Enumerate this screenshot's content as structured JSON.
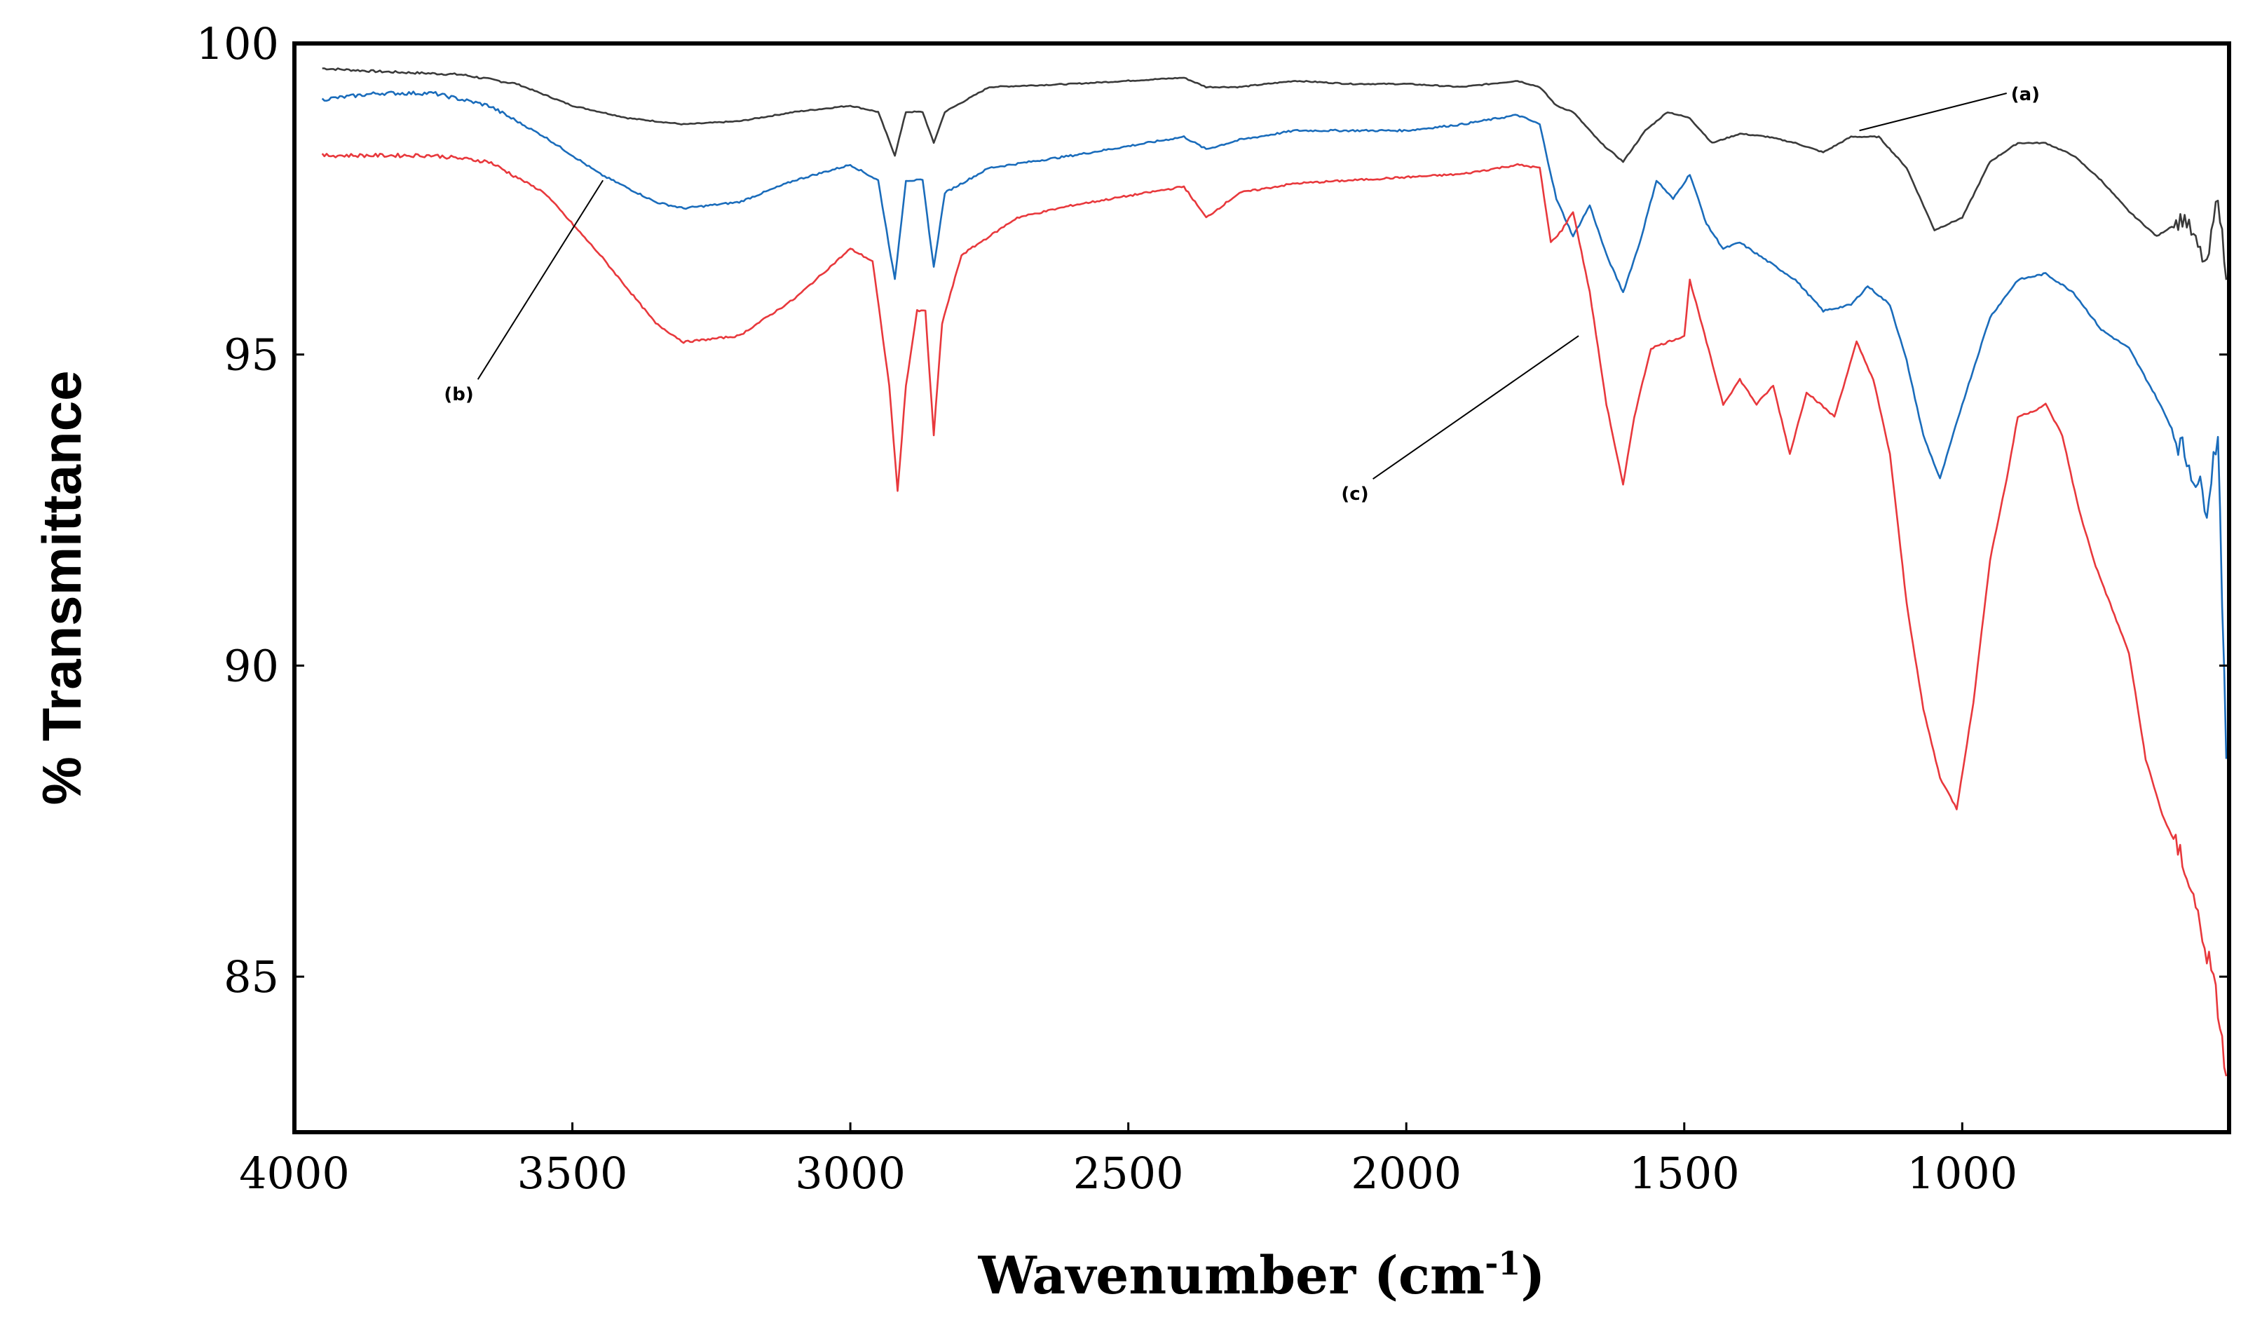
{
  "chart_data": {
    "type": "line",
    "title": "",
    "xlabel": "Wavenumber (cm",
    "xlabel_sup": "-1",
    "xlabel_close": ")",
    "ylabel": "% Transmittance",
    "xlim": [
      4000,
      520
    ],
    "ylim": [
      82.5,
      100
    ],
    "x_reversed": true,
    "grid": false,
    "x_ticks": [
      4000,
      3500,
      3000,
      2500,
      2000,
      1500,
      1000
    ],
    "x_tick_labels": [
      "4000",
      "3500",
      "3000",
      "2500",
      "2000",
      "1500",
      "1000"
    ],
    "y_ticks": [
      85,
      90,
      95,
      100
    ],
    "y_tick_labels": [
      "85",
      "90",
      "95",
      "100"
    ],
    "series": [
      {
        "name": "(a)",
        "color": "#3a3a3a",
        "points": [
          [
            3950,
            99.6
          ],
          [
            3850,
            99.55
          ],
          [
            3700,
            99.5
          ],
          [
            3600,
            99.35
          ],
          [
            3500,
            99.0
          ],
          [
            3400,
            98.8
          ],
          [
            3300,
            98.7
          ],
          [
            3200,
            98.75
          ],
          [
            3100,
            98.9
          ],
          [
            3000,
            99.0
          ],
          [
            2950,
            98.9
          ],
          [
            2920,
            98.2
          ],
          [
            2900,
            98.9
          ],
          [
            2870,
            98.9
          ],
          [
            2850,
            98.4
          ],
          [
            2830,
            98.9
          ],
          [
            2750,
            99.3
          ],
          [
            2600,
            99.35
          ],
          [
            2500,
            99.4
          ],
          [
            2400,
            99.45
          ],
          [
            2360,
            99.3
          ],
          [
            2300,
            99.3
          ],
          [
            2200,
            99.4
          ],
          [
            2100,
            99.35
          ],
          [
            2000,
            99.35
          ],
          [
            1900,
            99.3
          ],
          [
            1800,
            99.4
          ],
          [
            1760,
            99.3
          ],
          [
            1730,
            99.0
          ],
          [
            1700,
            98.9
          ],
          [
            1650,
            98.4
          ],
          [
            1610,
            98.1
          ],
          [
            1570,
            98.6
          ],
          [
            1530,
            98.9
          ],
          [
            1490,
            98.8
          ],
          [
            1450,
            98.4
          ],
          [
            1400,
            98.55
          ],
          [
            1350,
            98.5
          ],
          [
            1300,
            98.4
          ],
          [
            1250,
            98.25
          ],
          [
            1200,
            98.5
          ],
          [
            1150,
            98.5
          ],
          [
            1100,
            98.0
          ],
          [
            1050,
            97.0
          ],
          [
            1000,
            97.2
          ],
          [
            950,
            98.1
          ],
          [
            900,
            98.4
          ],
          [
            850,
            98.4
          ],
          [
            800,
            98.2
          ],
          [
            750,
            97.8
          ],
          [
            700,
            97.3
          ],
          [
            650,
            96.9
          ],
          [
            600,
            97.2
          ],
          [
            560,
            96.4
          ],
          [
            540,
            97.6
          ],
          [
            525,
            96.2
          ]
        ]
      },
      {
        "name": "(b)",
        "color": "#1a6cbb",
        "points": [
          [
            3950,
            99.1
          ],
          [
            3850,
            99.2
          ],
          [
            3750,
            99.2
          ],
          [
            3650,
            99.0
          ],
          [
            3550,
            98.5
          ],
          [
            3450,
            97.9
          ],
          [
            3350,
            97.45
          ],
          [
            3300,
            97.35
          ],
          [
            3200,
            97.45
          ],
          [
            3100,
            97.8
          ],
          [
            3000,
            98.05
          ],
          [
            2950,
            97.8
          ],
          [
            2920,
            96.2
          ],
          [
            2900,
            97.8
          ],
          [
            2870,
            97.8
          ],
          [
            2850,
            96.4
          ],
          [
            2830,
            97.6
          ],
          [
            2750,
            98.0
          ],
          [
            2600,
            98.2
          ],
          [
            2500,
            98.35
          ],
          [
            2400,
            98.5
          ],
          [
            2360,
            98.3
          ],
          [
            2300,
            98.45
          ],
          [
            2200,
            98.6
          ],
          [
            2100,
            98.6
          ],
          [
            2000,
            98.6
          ],
          [
            1900,
            98.7
          ],
          [
            1800,
            98.85
          ],
          [
            1760,
            98.7
          ],
          [
            1730,
            97.5
          ],
          [
            1700,
            96.9
          ],
          [
            1670,
            97.4
          ],
          [
            1640,
            96.6
          ],
          [
            1610,
            96.0
          ],
          [
            1580,
            96.8
          ],
          [
            1550,
            97.8
          ],
          [
            1520,
            97.5
          ],
          [
            1490,
            97.9
          ],
          [
            1460,
            97.1
          ],
          [
            1430,
            96.7
          ],
          [
            1400,
            96.8
          ],
          [
            1350,
            96.5
          ],
          [
            1300,
            96.2
          ],
          [
            1250,
            95.7
          ],
          [
            1200,
            95.8
          ],
          [
            1170,
            96.1
          ],
          [
            1130,
            95.8
          ],
          [
            1100,
            94.9
          ],
          [
            1070,
            93.7
          ],
          [
            1040,
            93.0
          ],
          [
            1000,
            94.2
          ],
          [
            950,
            95.6
          ],
          [
            900,
            96.2
          ],
          [
            850,
            96.3
          ],
          [
            800,
            96.0
          ],
          [
            750,
            95.4
          ],
          [
            700,
            95.1
          ],
          [
            650,
            94.3
          ],
          [
            600,
            93.4
          ],
          [
            560,
            92.6
          ],
          [
            540,
            93.8
          ],
          [
            525,
            88.5
          ]
        ]
      },
      {
        "name": "(c)",
        "color": "#e8383c",
        "points": [
          [
            3950,
            98.2
          ],
          [
            3850,
            98.2
          ],
          [
            3750,
            98.2
          ],
          [
            3650,
            98.1
          ],
          [
            3550,
            97.6
          ],
          [
            3450,
            96.6
          ],
          [
            3350,
            95.5
          ],
          [
            3300,
            95.2
          ],
          [
            3200,
            95.3
          ],
          [
            3100,
            95.9
          ],
          [
            3000,
            96.7
          ],
          [
            2960,
            96.5
          ],
          [
            2930,
            94.5
          ],
          [
            2915,
            92.8
          ],
          [
            2900,
            94.5
          ],
          [
            2880,
            95.7
          ],
          [
            2865,
            95.7
          ],
          [
            2850,
            93.7
          ],
          [
            2835,
            95.5
          ],
          [
            2800,
            96.6
          ],
          [
            2700,
            97.2
          ],
          [
            2600,
            97.4
          ],
          [
            2500,
            97.55
          ],
          [
            2400,
            97.7
          ],
          [
            2360,
            97.2
          ],
          [
            2300,
            97.6
          ],
          [
            2200,
            97.75
          ],
          [
            2100,
            97.8
          ],
          [
            2000,
            97.85
          ],
          [
            1900,
            97.9
          ],
          [
            1800,
            98.05
          ],
          [
            1760,
            98.0
          ],
          [
            1740,
            96.8
          ],
          [
            1720,
            97.0
          ],
          [
            1700,
            97.3
          ],
          [
            1670,
            96.0
          ],
          [
            1640,
            94.2
          ],
          [
            1610,
            92.9
          ],
          [
            1590,
            94.0
          ],
          [
            1560,
            95.1
          ],
          [
            1530,
            95.2
          ],
          [
            1500,
            95.3
          ],
          [
            1490,
            96.2
          ],
          [
            1460,
            95.2
          ],
          [
            1430,
            94.2
          ],
          [
            1400,
            94.6
          ],
          [
            1370,
            94.2
          ],
          [
            1340,
            94.5
          ],
          [
            1310,
            93.4
          ],
          [
            1280,
            94.4
          ],
          [
            1230,
            94.0
          ],
          [
            1190,
            95.2
          ],
          [
            1160,
            94.6
          ],
          [
            1130,
            93.4
          ],
          [
            1100,
            91.0
          ],
          [
            1070,
            89.3
          ],
          [
            1040,
            88.2
          ],
          [
            1010,
            87.7
          ],
          [
            980,
            89.4
          ],
          [
            950,
            91.7
          ],
          [
            920,
            93.0
          ],
          [
            900,
            94.0
          ],
          [
            870,
            94.1
          ],
          [
            850,
            94.2
          ],
          [
            820,
            93.7
          ],
          [
            790,
            92.5
          ],
          [
            760,
            91.6
          ],
          [
            730,
            90.9
          ],
          [
            700,
            90.2
          ],
          [
            670,
            88.5
          ],
          [
            640,
            87.6
          ],
          [
            600,
            86.8
          ],
          [
            560,
            85.4
          ],
          [
            540,
            84.5
          ],
          [
            525,
            83.4
          ]
        ]
      }
    ],
    "annotations": [
      {
        "text": "(a)",
        "target": [
          1185,
          98.6
        ],
        "label_at": [
          920,
          99.2
        ]
      },
      {
        "text": "(b)",
        "target": [
          3445,
          97.8
        ],
        "label_at": [
          3670,
          94.6
        ]
      },
      {
        "text": "(c)",
        "target": [
          1690,
          95.3
        ],
        "label_at": [
          2060,
          93.0
        ]
      }
    ]
  }
}
